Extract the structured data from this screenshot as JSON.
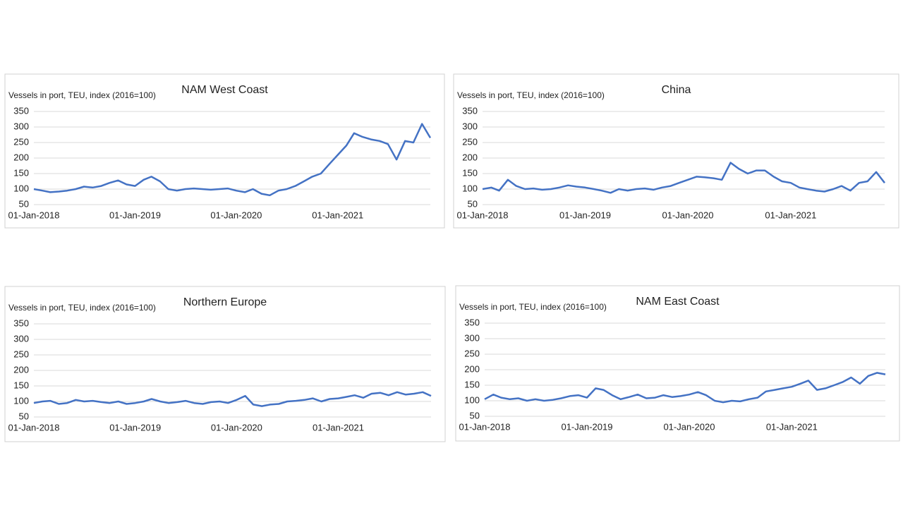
{
  "chart_data": [
    {
      "type": "line",
      "title": "NAM West Coast",
      "y_label": "Vessels in port, TEU, index (2016=100)",
      "x": [
        "01-Jan-2018",
        "01-Feb-2018",
        "01-Mar-2018",
        "01-Apr-2018",
        "01-May-2018",
        "01-Jun-2018",
        "01-Jul-2018",
        "01-Aug-2018",
        "01-Sep-2018",
        "01-Oct-2018",
        "01-Nov-2018",
        "01-Dec-2018",
        "01-Jan-2019",
        "01-Feb-2019",
        "01-Mar-2019",
        "01-Apr-2019",
        "01-May-2019",
        "01-Jun-2019",
        "01-Jul-2019",
        "01-Aug-2019",
        "01-Sep-2019",
        "01-Oct-2019",
        "01-Nov-2019",
        "01-Dec-2019",
        "01-Jan-2020",
        "01-Feb-2020",
        "01-Mar-2020",
        "01-Apr-2020",
        "01-May-2020",
        "01-Jun-2020",
        "01-Jul-2020",
        "01-Aug-2020",
        "01-Sep-2020",
        "01-Oct-2020",
        "01-Nov-2020",
        "01-Dec-2020",
        "01-Jan-2021",
        "01-Feb-2021",
        "01-Mar-2021",
        "01-Apr-2021",
        "01-May-2021",
        "01-Jun-2021",
        "01-Jul-2021",
        "01-Aug-2021",
        "01-Sep-2021",
        "01-Oct-2021",
        "01-Nov-2021",
        "01-Dec-2021"
      ],
      "series": [
        {
          "name": "NAM West Coast",
          "color": "#4472c4",
          "values": [
            100,
            95,
            90,
            92,
            95,
            100,
            108,
            105,
            110,
            120,
            128,
            115,
            110,
            130,
            140,
            125,
            100,
            95,
            100,
            102,
            100,
            98,
            100,
            102,
            95,
            90,
            100,
            85,
            80,
            95,
            100,
            110,
            125,
            140,
            150,
            180,
            210,
            240,
            280,
            268,
            260,
            255,
            245,
            195,
            255,
            250,
            310,
            265
          ]
        }
      ],
      "xlim": [
        "01-Jan-2018",
        "01-Dec-2021"
      ],
      "xticks": [
        "01-Jan-2018",
        "01-Jan-2019",
        "01-Jan-2020",
        "01-Jan-2021"
      ],
      "ylim": [
        50,
        350
      ],
      "yticks": [
        50,
        100,
        150,
        200,
        250,
        300,
        350
      ],
      "grid": true
    },
    {
      "type": "line",
      "title": "China",
      "y_label": "Vessels in port, TEU, index (2016=100)",
      "x": [
        "01-Jan-2018",
        "01-Feb-2018",
        "01-Mar-2018",
        "01-Apr-2018",
        "01-May-2018",
        "01-Jun-2018",
        "01-Jul-2018",
        "01-Aug-2018",
        "01-Sep-2018",
        "01-Oct-2018",
        "01-Nov-2018",
        "01-Dec-2018",
        "01-Jan-2019",
        "01-Feb-2019",
        "01-Mar-2019",
        "01-Apr-2019",
        "01-May-2019",
        "01-Jun-2019",
        "01-Jul-2019",
        "01-Aug-2019",
        "01-Sep-2019",
        "01-Oct-2019",
        "01-Nov-2019",
        "01-Dec-2019",
        "01-Jan-2020",
        "01-Feb-2020",
        "01-Mar-2020",
        "01-Apr-2020",
        "01-May-2020",
        "01-Jun-2020",
        "01-Jul-2020",
        "01-Aug-2020",
        "01-Sep-2020",
        "01-Oct-2020",
        "01-Nov-2020",
        "01-Dec-2020",
        "01-Jan-2021",
        "01-Feb-2021",
        "01-Mar-2021",
        "01-Apr-2021",
        "01-May-2021",
        "01-Jun-2021",
        "01-Jul-2021",
        "01-Aug-2021",
        "01-Sep-2021",
        "01-Oct-2021",
        "01-Nov-2021",
        "01-Dec-2021"
      ],
      "series": [
        {
          "name": "China",
          "color": "#4472c4",
          "values": [
            100,
            105,
            95,
            130,
            110,
            100,
            102,
            98,
            100,
            105,
            112,
            108,
            105,
            100,
            95,
            88,
            100,
            95,
            100,
            102,
            98,
            105,
            110,
            120,
            130,
            140,
            138,
            135,
            130,
            185,
            165,
            150,
            160,
            160,
            140,
            125,
            120,
            105,
            100,
            95,
            92,
            100,
            110,
            95,
            120,
            125,
            155,
            120
          ]
        }
      ],
      "xlim": [
        "01-Jan-2018",
        "01-Dec-2021"
      ],
      "xticks": [
        "01-Jan-2018",
        "01-Jan-2019",
        "01-Jan-2020",
        "01-Jan-2021"
      ],
      "ylim": [
        50,
        350
      ],
      "yticks": [
        50,
        100,
        150,
        200,
        250,
        300,
        350
      ],
      "grid": true
    },
    {
      "type": "line",
      "title": "Northern Europe",
      "y_label": "Vessels in port, TEU, index (2016=100)",
      "x": [
        "01-Jan-2018",
        "01-Feb-2018",
        "01-Mar-2018",
        "01-Apr-2018",
        "01-May-2018",
        "01-Jun-2018",
        "01-Jul-2018",
        "01-Aug-2018",
        "01-Sep-2018",
        "01-Oct-2018",
        "01-Nov-2018",
        "01-Dec-2018",
        "01-Jan-2019",
        "01-Feb-2019",
        "01-Mar-2019",
        "01-Apr-2019",
        "01-May-2019",
        "01-Jun-2019",
        "01-Jul-2019",
        "01-Aug-2019",
        "01-Sep-2019",
        "01-Oct-2019",
        "01-Nov-2019",
        "01-Dec-2019",
        "01-Jan-2020",
        "01-Feb-2020",
        "01-Mar-2020",
        "01-Apr-2020",
        "01-May-2020",
        "01-Jun-2020",
        "01-Jul-2020",
        "01-Aug-2020",
        "01-Sep-2020",
        "01-Oct-2020",
        "01-Nov-2020",
        "01-Dec-2020",
        "01-Jan-2021",
        "01-Feb-2021",
        "01-Mar-2021",
        "01-Apr-2021",
        "01-May-2021",
        "01-Jun-2021",
        "01-Jul-2021",
        "01-Aug-2021",
        "01-Sep-2021",
        "01-Oct-2021",
        "01-Nov-2021",
        "01-Dec-2021"
      ],
      "series": [
        {
          "name": "Northern Europe",
          "color": "#4472c4",
          "values": [
            95,
            100,
            102,
            92,
            95,
            105,
            100,
            102,
            98,
            95,
            100,
            92,
            95,
            100,
            108,
            100,
            95,
            98,
            102,
            95,
            92,
            98,
            100,
            95,
            105,
            118,
            90,
            85,
            90,
            92,
            100,
            102,
            105,
            110,
            100,
            108,
            110,
            115,
            120,
            112,
            125,
            128,
            120,
            130,
            122,
            125,
            130,
            118
          ]
        }
      ],
      "xlim": [
        "01-Jan-2018",
        "01-Dec-2021"
      ],
      "xticks": [
        "01-Jan-2018",
        "01-Jan-2019",
        "01-Jan-2020",
        "01-Jan-2021"
      ],
      "ylim": [
        50,
        350
      ],
      "yticks": [
        50,
        100,
        150,
        200,
        250,
        300,
        350
      ],
      "grid": true
    },
    {
      "type": "line",
      "title": "NAM East Coast",
      "y_label": "Vessels in port, TEU, index (2016=100)",
      "x": [
        "01-Jan-2018",
        "01-Feb-2018",
        "01-Mar-2018",
        "01-Apr-2018",
        "01-May-2018",
        "01-Jun-2018",
        "01-Jul-2018",
        "01-Aug-2018",
        "01-Sep-2018",
        "01-Oct-2018",
        "01-Nov-2018",
        "01-Dec-2018",
        "01-Jan-2019",
        "01-Feb-2019",
        "01-Mar-2019",
        "01-Apr-2019",
        "01-May-2019",
        "01-Jun-2019",
        "01-Jul-2019",
        "01-Aug-2019",
        "01-Sep-2019",
        "01-Oct-2019",
        "01-Nov-2019",
        "01-Dec-2019",
        "01-Jan-2020",
        "01-Feb-2020",
        "01-Mar-2020",
        "01-Apr-2020",
        "01-May-2020",
        "01-Jun-2020",
        "01-Jul-2020",
        "01-Aug-2020",
        "01-Sep-2020",
        "01-Oct-2020",
        "01-Nov-2020",
        "01-Dec-2020",
        "01-Jan-2021",
        "01-Feb-2021",
        "01-Mar-2021",
        "01-Apr-2021",
        "01-May-2021",
        "01-Jun-2021",
        "01-Jul-2021",
        "01-Aug-2021",
        "01-Sep-2021",
        "01-Oct-2021",
        "01-Nov-2021",
        "01-Dec-2021"
      ],
      "series": [
        {
          "name": "NAM East Coast",
          "color": "#4472c4",
          "values": [
            105,
            120,
            110,
            105,
            108,
            100,
            105,
            100,
            103,
            108,
            115,
            118,
            110,
            140,
            135,
            118,
            105,
            112,
            120,
            108,
            110,
            118,
            112,
            115,
            120,
            128,
            118,
            100,
            95,
            100,
            98,
            105,
            110,
            130,
            135,
            140,
            145,
            155,
            165,
            135,
            140,
            150,
            160,
            175,
            155,
            180,
            190,
            185
          ]
        }
      ],
      "xlim": [
        "01-Jan-2018",
        "01-Dec-2021"
      ],
      "xticks": [
        "01-Jan-2018",
        "01-Jan-2019",
        "01-Jan-2020",
        "01-Jan-2021"
      ],
      "ylim": [
        50,
        350
      ],
      "yticks": [
        50,
        100,
        150,
        200,
        250,
        300,
        350
      ],
      "grid": true
    }
  ]
}
